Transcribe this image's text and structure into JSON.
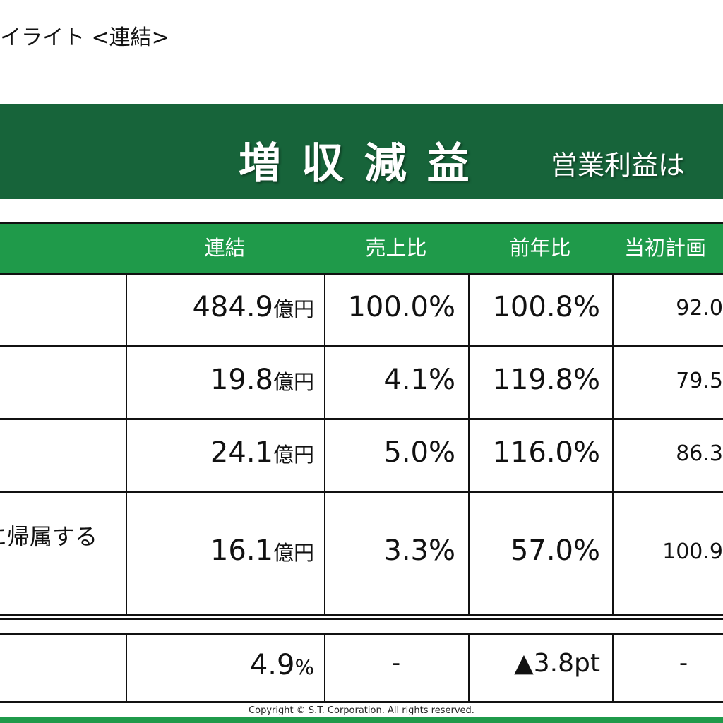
{
  "header": {
    "title": "イライト <連結>"
  },
  "banner": {
    "headline": "増 収 減 益",
    "subhead": "営業利益は"
  },
  "table": {
    "columns": [
      "連結",
      "売上比",
      "前年比",
      "当初計画"
    ],
    "rows": [
      {
        "amount": "484.9",
        "unit": "億円",
        "cells": [
          "100.0%",
          "100.8%",
          "92.0"
        ]
      },
      {
        "amount": "19.8",
        "unit": "億円",
        "cells": [
          "4.1%",
          "119.8%",
          "79.5"
        ]
      },
      {
        "amount": "24.1",
        "unit": "億円",
        "cells": [
          "5.0%",
          "116.0%",
          "86.3"
        ]
      },
      {
        "label": "に帰属する",
        "amount": "16.1",
        "unit": "億円",
        "cells": [
          "3.3%",
          "57.0%",
          "100.9"
        ]
      },
      {
        "amount": "4.9",
        "unit": "%",
        "cells": [
          "-",
          "▲3.8pt",
          "-"
        ]
      }
    ]
  },
  "footer": {
    "copyright": "Copyright © S.T. Corporation. All rights reserved."
  }
}
